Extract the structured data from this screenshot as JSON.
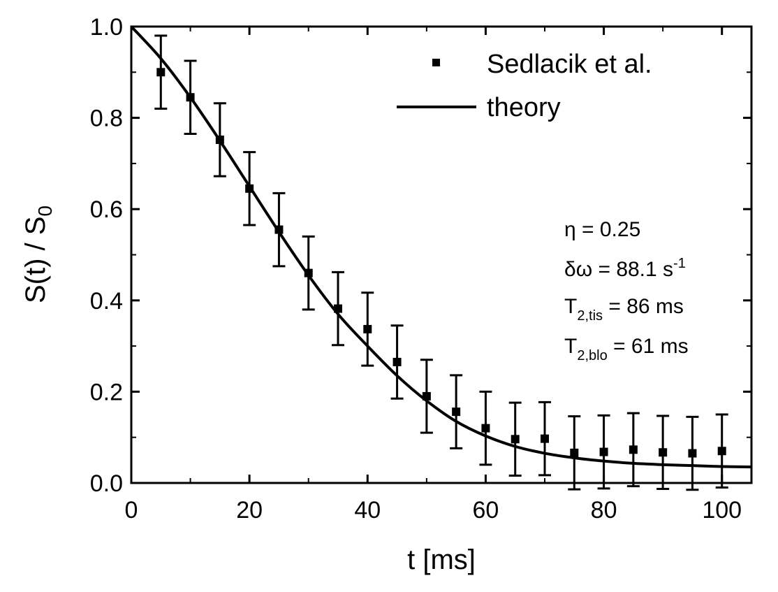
{
  "chart_data": {
    "type": "scatter",
    "xlabel": "t [ms]",
    "ylabel": {
      "main": "S(t) / S",
      "sub": "0"
    },
    "xlim": [
      0,
      105
    ],
    "ylim": [
      0,
      1.0
    ],
    "x_ticks": [
      0,
      20,
      40,
      60,
      80,
      100
    ],
    "x_tick_labels": [
      "0",
      "20",
      "40",
      "60",
      "80",
      "100"
    ],
    "y_ticks": [
      0,
      0.2,
      0.4,
      0.6,
      0.8,
      1.0
    ],
    "y_tick_labels": [
      "0.0",
      "0.2",
      "0.4",
      "0.6",
      "0.8",
      "1.0"
    ],
    "grid": false,
    "legend_position": "top-right",
    "series": [
      {
        "name": "Sedlacik et al.",
        "kind": "points_with_errorbars",
        "marker": "square",
        "color": "#000000",
        "x": [
          5,
          10,
          15,
          20,
          25,
          30,
          35,
          40,
          45,
          50,
          55,
          60,
          65,
          70,
          75,
          80,
          85,
          90,
          95,
          100
        ],
        "y": [
          0.9,
          0.845,
          0.752,
          0.645,
          0.555,
          0.46,
          0.382,
          0.337,
          0.265,
          0.19,
          0.156,
          0.12,
          0.096,
          0.097,
          0.066,
          0.068,
          0.073,
          0.067,
          0.065,
          0.07
        ],
        "yerr": [
          0.08,
          0.08,
          0.08,
          0.08,
          0.08,
          0.08,
          0.08,
          0.08,
          0.08,
          0.08,
          0.08,
          0.08,
          0.08,
          0.08,
          0.08,
          0.08,
          0.08,
          0.08,
          0.08,
          0.08
        ]
      },
      {
        "name": "theory",
        "kind": "line",
        "color": "#000000",
        "x": [
          0,
          5,
          10,
          15,
          20,
          25,
          30,
          35,
          40,
          45,
          50,
          55,
          60,
          65,
          70,
          75,
          80,
          85,
          90,
          95,
          100,
          105
        ],
        "y": [
          1.0,
          0.93,
          0.845,
          0.75,
          0.65,
          0.55,
          0.455,
          0.37,
          0.3,
          0.235,
          0.18,
          0.135,
          0.103,
          0.08,
          0.065,
          0.055,
          0.048,
          0.043,
          0.04,
          0.038,
          0.036,
          0.035
        ]
      }
    ],
    "annotations": [
      {
        "symbol": "η",
        "sub": "",
        "sup": "",
        "value": " = 0.25"
      },
      {
        "symbol": "δω",
        "sub": "",
        "value": " = 88.1 s",
        "sup": "-1"
      },
      {
        "symbol": "T",
        "sub": "2,tis",
        "sup": "",
        "value": " = 86 ms"
      },
      {
        "symbol": "T",
        "sub": "2,blo",
        "sup": "",
        "value": " = 61 ms"
      }
    ]
  }
}
